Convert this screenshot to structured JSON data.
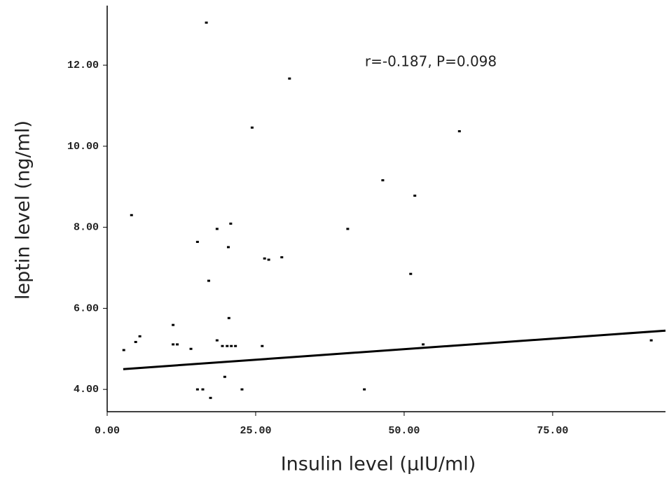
{
  "chart_data": {
    "type": "scatter",
    "x_label": "Insulin level (µIU/ml)",
    "y_label": "leptin level (ng/ml)",
    "annotation": "r=-0.187, P=0.098",
    "series": [
      {
        "color": "#000000",
        "x": [
          2.8,
          4.1,
          4.8,
          5.5,
          11.1,
          11.1,
          11.8,
          14.1,
          15.2,
          15.2,
          16.1,
          16.7,
          17.1,
          17.4,
          18.5,
          18.5,
          19.4,
          19.8,
          20.4,
          20.5,
          20.8,
          20.2,
          20.9,
          21.6,
          22.7,
          24.4,
          26.1,
          26.5,
          27.2,
          29.4,
          30.7,
          40.5,
          43.3,
          46.4,
          51.1,
          51.8,
          53.2,
          59.3,
          91.6
        ],
        "values": [
          4.97,
          8.3,
          5.17,
          5.31,
          5.59,
          5.11,
          5.11,
          5.0,
          7.64,
          4.0,
          4.0,
          13.05,
          6.68,
          3.79,
          7.96,
          5.21,
          5.07,
          4.31,
          7.51,
          5.76,
          8.09,
          5.07,
          5.07,
          5.07,
          4.0,
          10.46,
          5.07,
          7.23,
          7.2,
          7.26,
          11.67,
          7.96,
          4.0,
          9.16,
          6.85,
          8.78,
          5.11,
          10.37,
          5.21
        ]
      }
    ],
    "fit_line": {
      "x": [
        2.7,
        94
      ],
      "y": [
        4.5,
        5.45
      ]
    },
    "xlim": [
      0,
      94
    ],
    "ylim": [
      3.45,
      13.47
    ],
    "xticks": [
      {
        "value": 0,
        "label": "0.00"
      },
      {
        "value": 25,
        "label": "25.00"
      },
      {
        "value": 50,
        "label": "50.00"
      },
      {
        "value": 75,
        "label": "75.00"
      }
    ],
    "yticks": [
      {
        "value": 4,
        "label": "4.00"
      },
      {
        "value": 6,
        "label": "6.00"
      },
      {
        "value": 8,
        "label": "8.00"
      },
      {
        "value": 10,
        "label": "10.00"
      },
      {
        "value": 12,
        "label": "12.00"
      }
    ]
  }
}
